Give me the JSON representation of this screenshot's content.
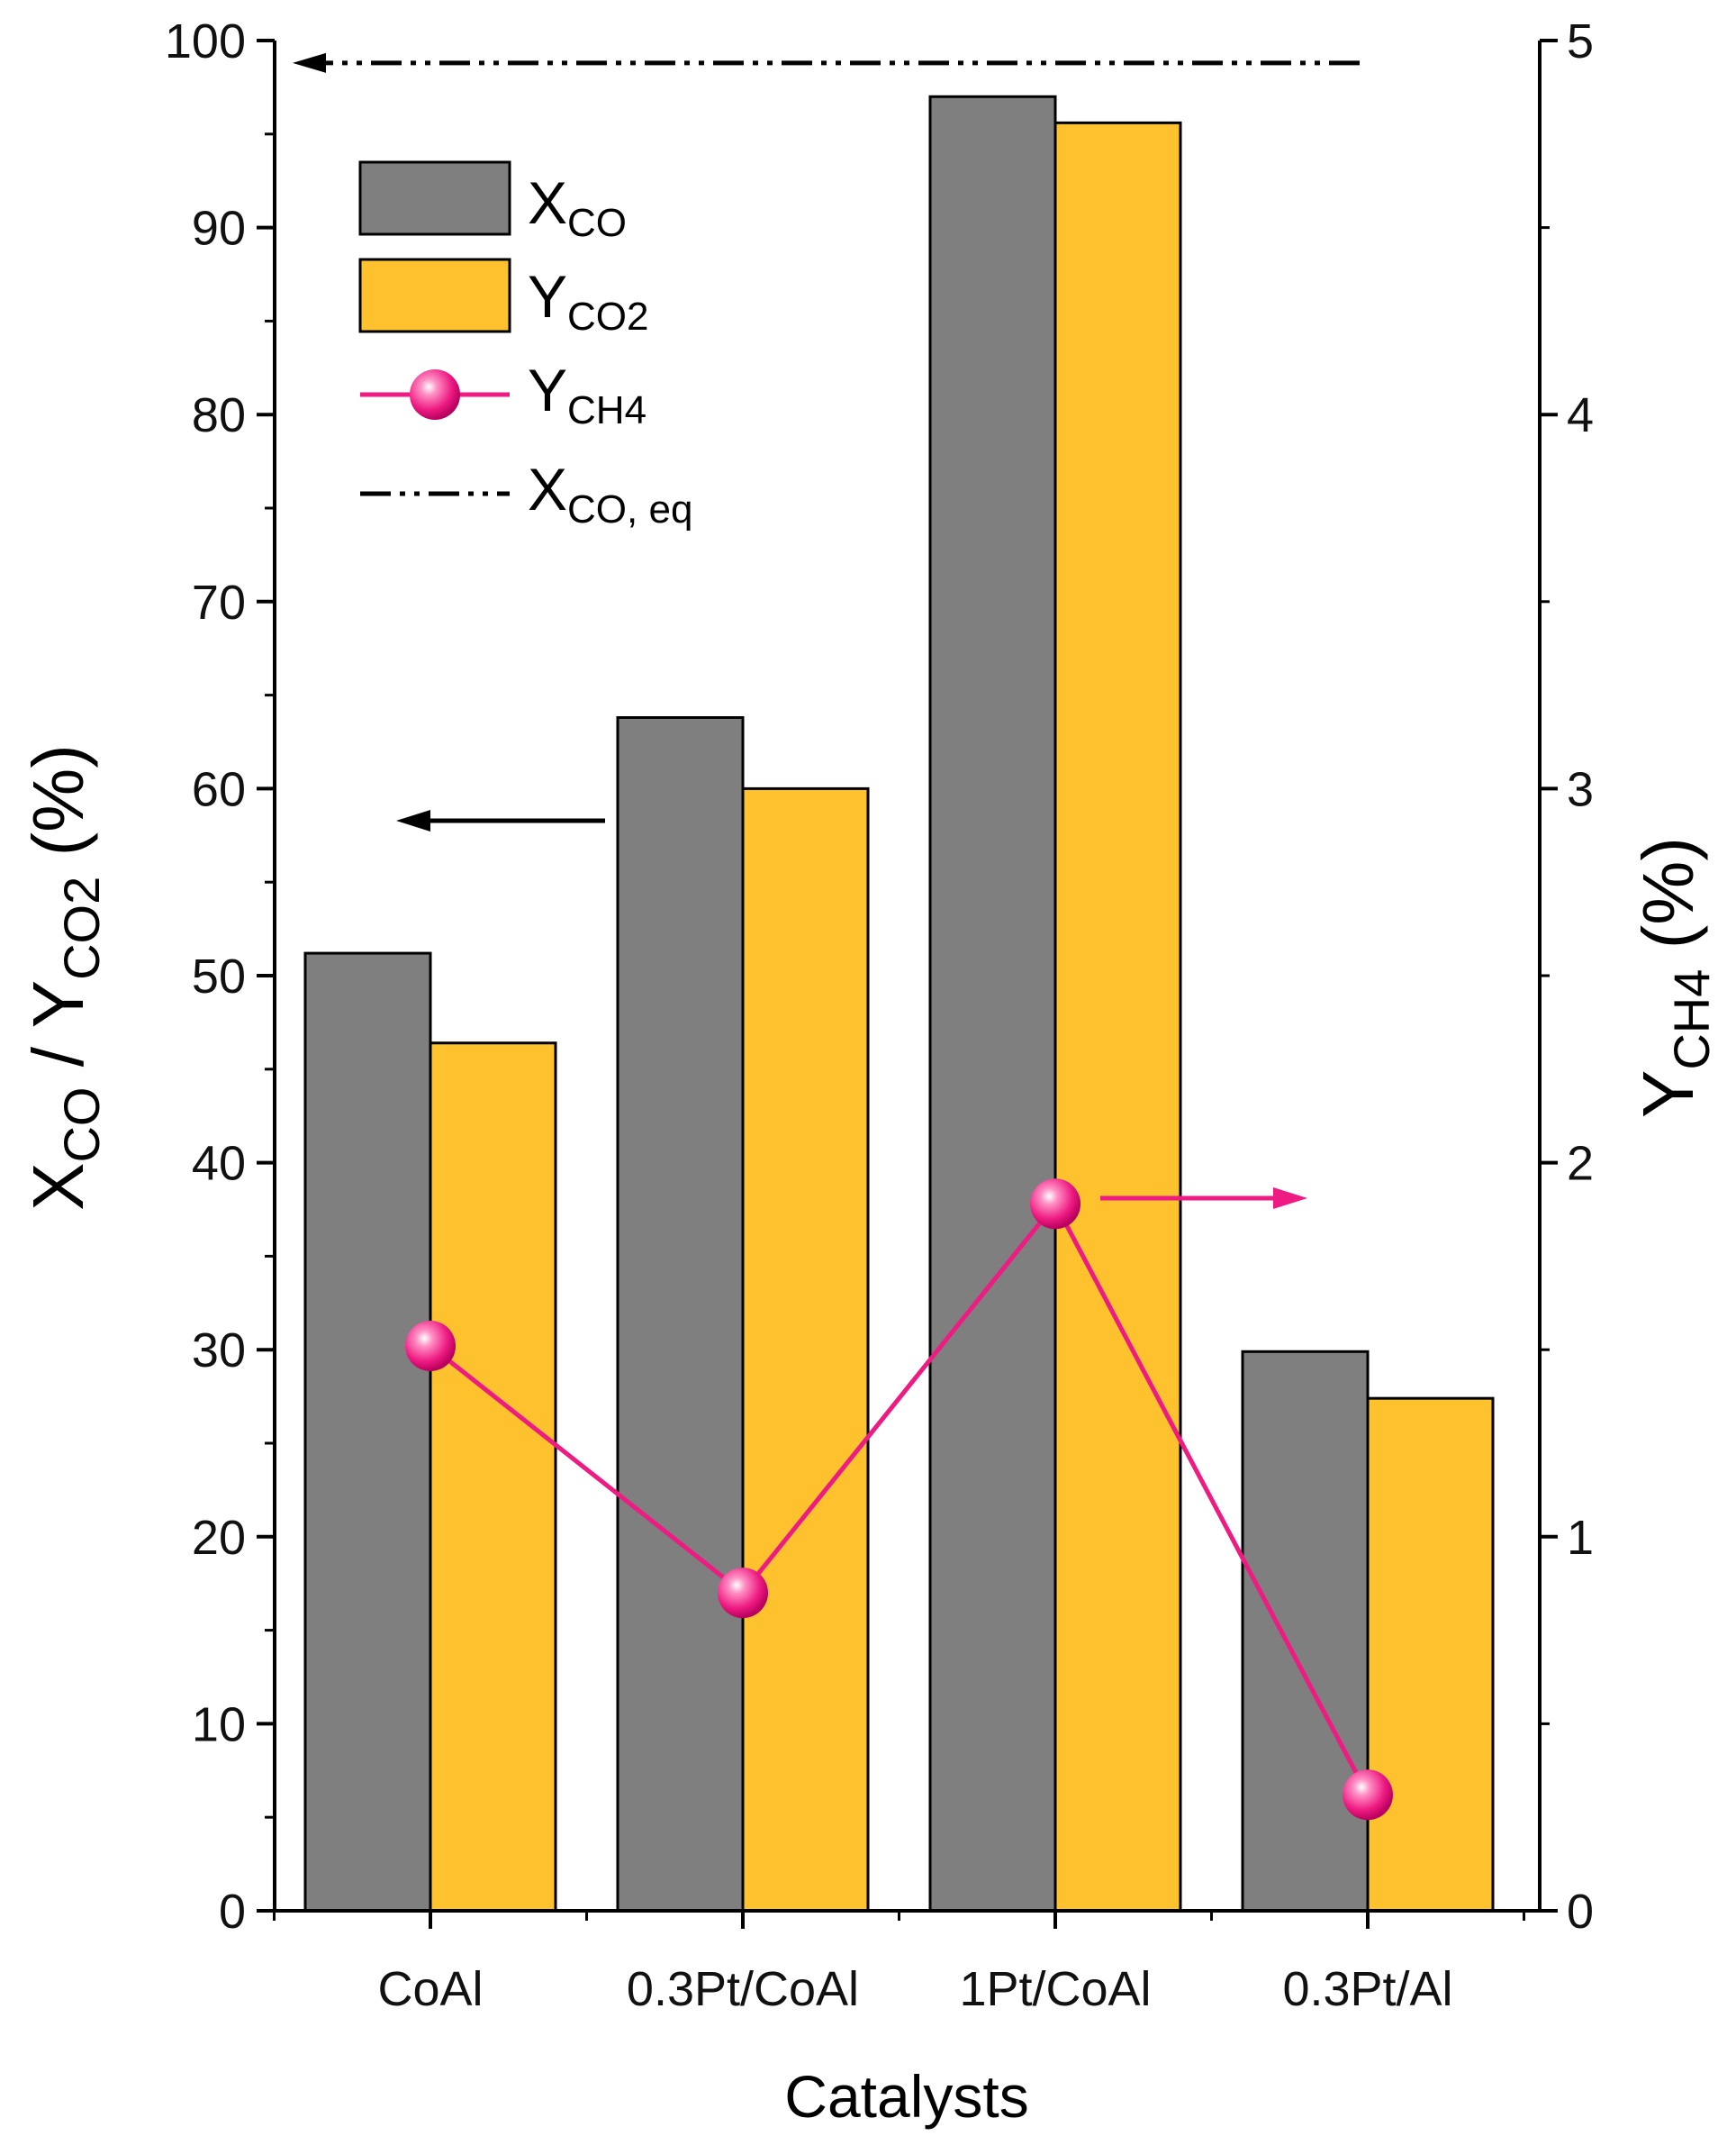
{
  "chart_data": {
    "type": "bar",
    "categories": [
      "CoAl",
      "0.3Pt/CoAl",
      "1Pt/CoAl",
      "0.3Pt/Al"
    ],
    "series": [
      {
        "name": "X_CO",
        "axis": "left",
        "kind": "bar",
        "color": "#7f7f7f",
        "values": [
          51.2,
          63.8,
          97.0,
          29.9
        ]
      },
      {
        "name": "Y_CO2",
        "axis": "left",
        "kind": "bar",
        "color": "#fdc22e",
        "values": [
          46.4,
          60.0,
          95.6,
          27.4
        ]
      },
      {
        "name": "Y_CH4",
        "axis": "right",
        "kind": "line",
        "color": "#ee1b82",
        "values": [
          1.51,
          0.85,
          1.89,
          0.31
        ]
      }
    ],
    "equilibrium": {
      "name": "X_CO, eq",
      "axis": "left",
      "value": 98.8
    },
    "xlabel": "Catalysts",
    "ylabel": "X_CO / Y_CO2 (%)",
    "y2label": "Y_CH4 (%)",
    "ylim": [
      0,
      100
    ],
    "y2lim": [
      0,
      5
    ],
    "yticks": [
      0,
      10,
      20,
      30,
      40,
      50,
      60,
      70,
      80,
      90,
      100
    ],
    "y2ticks": [
      0,
      1,
      2,
      3,
      4,
      5
    ],
    "legend_position": "top-left",
    "grid": false
  },
  "labels": {
    "xlabel": "Catalysts",
    "ylabel_x": "X",
    "ylabel_x_sub": "CO",
    "ylabel_sep": " / Y",
    "ylabel_y_sub": "CO2",
    "ylabel_unit": " (%)",
    "y2label_main": "Y",
    "y2label_sub": "CH4",
    "y2label_unit": " (%)"
  },
  "legend": [
    {
      "main": "X",
      "sub": "CO",
      "kind": "bar",
      "color": "#7f7f7f"
    },
    {
      "main": "Y",
      "sub": "CO2",
      "kind": "bar",
      "color": "#fdc22e"
    },
    {
      "main": "Y",
      "sub": "CH4",
      "kind": "line",
      "color": "#ee1b82"
    },
    {
      "main": "X",
      "sub": "CO, eq",
      "kind": "dashdot",
      "color": "#000000"
    }
  ]
}
